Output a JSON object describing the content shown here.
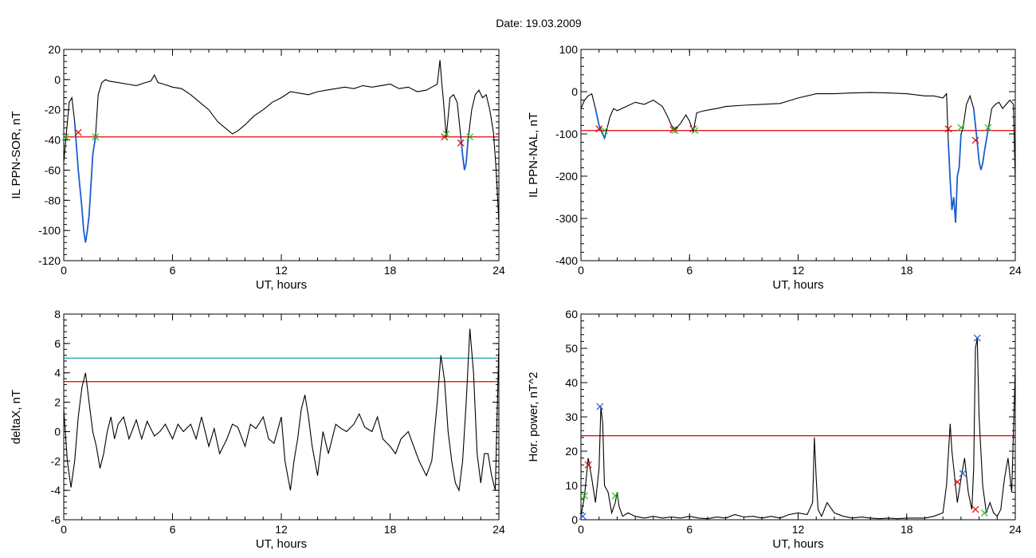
{
  "figure": {
    "date_title": "Date:  19.03.2009"
  },
  "colors": {
    "trace": "#000000",
    "threshold": "#e00000",
    "threshold2": "#1fa0a0",
    "highlight": "#1a5fd0",
    "marker_red": "#e00000",
    "marker_green": "#22bb22",
    "marker_blue": "#1a5fd0"
  },
  "chart_data": [
    {
      "id": "ppn_sor",
      "type": "line",
      "ylabel": "IL PPN-SOR, nT",
      "xlabel": "UT, hours",
      "xlim": [
        0,
        24
      ],
      "ylim": [
        -120,
        20
      ],
      "xticks": [
        0,
        6,
        12,
        18,
        24
      ],
      "yticks": [
        -120,
        -100,
        -80,
        -60,
        -40,
        -20,
        0,
        20
      ],
      "threshold": -38,
      "series": [
        {
          "x": [
            0,
            0.15,
            0.3,
            0.45,
            0.6,
            0.8,
            1.0,
            1.1,
            1.2,
            1.3,
            1.4,
            1.5,
            1.6,
            1.75,
            1.9,
            2.1,
            2.3,
            2.5,
            3,
            3.5,
            4,
            4.5,
            4.8,
            5.0,
            5.2,
            5.5,
            6,
            6.5,
            7,
            7.5,
            8,
            8.5,
            9,
            9.3,
            9.6,
            10,
            10.5,
            11,
            11.5,
            12,
            12.5,
            13,
            13.5,
            14,
            14.5,
            15,
            15.5,
            16,
            16.5,
            17,
            17.5,
            18,
            18.5,
            19,
            19.5,
            20,
            20.3,
            20.6,
            20.75,
            20.85,
            20.95,
            21.1,
            21.3,
            21.5,
            21.7,
            21.9,
            22.0,
            22.1,
            22.2,
            22.3,
            22.5,
            22.7,
            22.9,
            23.1,
            23.3,
            23.5,
            23.7,
            23.85,
            24
          ],
          "y": [
            -55,
            -35,
            -15,
            -12,
            -28,
            -60,
            -85,
            -100,
            -108,
            -100,
            -90,
            -70,
            -50,
            -38,
            -10,
            -2,
            0,
            -1,
            -2,
            -3,
            -4,
            -2,
            -1,
            3,
            -2,
            -3,
            -5,
            -6,
            -10,
            -15,
            -20,
            -28,
            -33,
            -36,
            -34,
            -30,
            -24,
            -20,
            -15,
            -12,
            -8,
            -9,
            -10,
            -8,
            -7,
            -6,
            -5,
            -6,
            -4,
            -5,
            -4,
            -3,
            -6,
            -5,
            -8,
            -7,
            -5,
            -3,
            13,
            -2,
            -15,
            -38,
            -12,
            -10,
            -15,
            -38,
            -50,
            -60,
            -55,
            -40,
            -20,
            -10,
            -7,
            -12,
            -10,
            -20,
            -35,
            -60,
            -95
          ]
        }
      ],
      "highlight_ranges": [
        [
          0.55,
          1.8
        ],
        [
          21.8,
          22.4
        ]
      ],
      "markers": [
        {
          "x": 0.8,
          "y": -35,
          "color": "red"
        },
        {
          "x": 0.1,
          "y": -38,
          "color": "green"
        },
        {
          "x": 1.75,
          "y": -38,
          "color": "green"
        },
        {
          "x": 21.0,
          "y": -38,
          "color": "red"
        },
        {
          "x": 21.1,
          "y": -36,
          "color": "green"
        },
        {
          "x": 21.9,
          "y": -42,
          "color": "red"
        },
        {
          "x": 22.4,
          "y": -38,
          "color": "green"
        }
      ]
    },
    {
      "id": "ppn_nal",
      "type": "line",
      "ylabel": "IL PPN-NAL, nT",
      "xlabel": "UT, hours",
      "xlim": [
        0,
        24
      ],
      "ylim": [
        -400,
        100
      ],
      "xticks": [
        0,
        6,
        12,
        18,
        24
      ],
      "yticks": [
        -400,
        -300,
        -200,
        -100,
        0,
        100
      ],
      "threshold": -92,
      "series": [
        {
          "x": [
            0,
            0.2,
            0.4,
            0.6,
            0.8,
            1.0,
            1.2,
            1.3,
            1.4,
            1.6,
            1.8,
            2.0,
            2.5,
            3,
            3.5,
            4,
            4.5,
            4.8,
            5.0,
            5.2,
            5.5,
            5.8,
            6.0,
            6.2,
            6.4,
            6.8,
            7.5,
            8,
            9,
            10,
            11,
            12,
            13,
            14,
            15,
            16,
            17,
            18,
            19,
            19.5,
            20,
            20.2,
            20.3,
            20.4,
            20.5,
            20.6,
            20.7,
            20.8,
            20.9,
            21.0,
            21.1,
            21.3,
            21.5,
            21.7,
            21.9,
            22.0,
            22.1,
            22.2,
            22.3,
            22.5,
            22.7,
            22.9,
            23.1,
            23.3,
            23.5,
            23.7,
            23.9,
            24
          ],
          "y": [
            -40,
            -20,
            -10,
            -5,
            -40,
            -80,
            -100,
            -110,
            -95,
            -60,
            -40,
            -45,
            -35,
            -25,
            -30,
            -20,
            -35,
            -60,
            -80,
            -90,
            -75,
            -55,
            -70,
            -95,
            -50,
            -45,
            -40,
            -35,
            -32,
            -30,
            -28,
            -15,
            -5,
            -5,
            -3,
            -2,
            -3,
            -5,
            -10,
            -10,
            -15,
            -5,
            -120,
            -210,
            -280,
            -250,
            -310,
            -200,
            -180,
            -100,
            -90,
            -30,
            -10,
            -40,
            -120,
            -165,
            -185,
            -170,
            -140,
            -90,
            -40,
            -30,
            -25,
            -40,
            -30,
            -20,
            -30,
            -210
          ]
        }
      ],
      "highlight_ranges": [
        [
          0.8,
          1.5
        ],
        [
          20.25,
          21.0
        ],
        [
          21.7,
          22.5
        ]
      ],
      "markers": [
        {
          "x": 1.0,
          "y": -88,
          "color": "red"
        },
        {
          "x": 1.3,
          "y": -92,
          "color": "green"
        },
        {
          "x": 5.1,
          "y": -90,
          "color": "red"
        },
        {
          "x": 5.2,
          "y": -92,
          "color": "green"
        },
        {
          "x": 6.2,
          "y": -88,
          "color": "red"
        },
        {
          "x": 6.3,
          "y": -92,
          "color": "green"
        },
        {
          "x": 20.3,
          "y": -88,
          "color": "red"
        },
        {
          "x": 21.0,
          "y": -85,
          "color": "green"
        },
        {
          "x": 21.8,
          "y": -115,
          "color": "red"
        },
        {
          "x": 22.5,
          "y": -85,
          "color": "green"
        }
      ]
    },
    {
      "id": "deltax",
      "type": "line",
      "ylabel": "deltaX, nT",
      "xlabel": "UT, hours",
      "xlim": [
        0,
        24
      ],
      "ylim": [
        -6,
        8
      ],
      "xticks": [
        0,
        6,
        12,
        18,
        24
      ],
      "yticks": [
        -6,
        -4,
        -2,
        0,
        2,
        4,
        6,
        8
      ],
      "threshold": 3.4,
      "threshold2": 5.0,
      "series": [
        {
          "x": [
            0,
            0.2,
            0.4,
            0.6,
            0.8,
            1.0,
            1.2,
            1.4,
            1.6,
            1.8,
            2.0,
            2.2,
            2.4,
            2.6,
            2.8,
            3,
            3.3,
            3.6,
            4,
            4.3,
            4.6,
            5,
            5.3,
            5.6,
            6,
            6.3,
            6.6,
            7,
            7.3,
            7.6,
            8,
            8.3,
            8.6,
            9,
            9.3,
            9.6,
            10,
            10.3,
            10.6,
            11,
            11.3,
            11.6,
            12,
            12.2,
            12.5,
            12.7,
            12.9,
            13.1,
            13.3,
            13.5,
            13.7,
            14,
            14.3,
            14.6,
            15,
            15.3,
            15.6,
            16,
            16.3,
            16.6,
            17,
            17.3,
            17.6,
            18,
            18.3,
            18.6,
            19,
            19.3,
            19.6,
            20,
            20.3,
            20.6,
            20.8,
            21.0,
            21.2,
            21.4,
            21.6,
            21.8,
            22.0,
            22.2,
            22.4,
            22.6,
            22.8,
            23.0,
            23.2,
            23.4,
            23.6,
            23.8,
            24
          ],
          "y": [
            1.5,
            -2,
            -3.8,
            -2,
            1,
            3,
            4,
            2,
            0,
            -1,
            -2.5,
            -1.5,
            0,
            1,
            -0.5,
            0.5,
            1,
            -0.5,
            0.8,
            -0.5,
            0.7,
            -0.3,
            0,
            0.5,
            -0.5,
            0.5,
            0,
            0.5,
            -0.5,
            1,
            -1,
            0.2,
            -1.5,
            -0.5,
            0.5,
            0.3,
            -1,
            0.5,
            0.2,
            1,
            -0.5,
            -0.8,
            1,
            -2,
            -4,
            -2,
            -0.5,
            1.5,
            2.5,
            1,
            -1,
            -3,
            0,
            -1.5,
            0.5,
            0.2,
            0,
            0.5,
            1.2,
            0.3,
            0,
            1,
            -0.5,
            -1,
            -1.5,
            -0.5,
            0,
            -1,
            -2,
            -3,
            -2,
            2,
            5.2,
            3.5,
            0,
            -2,
            -3.5,
            -4,
            -2,
            2,
            7,
            4,
            -1.5,
            -3.5,
            -1.5,
            -1.5,
            -3,
            -4,
            6
          ]
        }
      ]
    },
    {
      "id": "hor_power",
      "type": "line",
      "ylabel": "Hor. power, nT^2",
      "xlabel": "UT, hours",
      "xlim": [
        0,
        24
      ],
      "ylim": [
        0,
        60
      ],
      "xticks": [
        0,
        6,
        12,
        18,
        24
      ],
      "yticks": [
        0,
        10,
        20,
        30,
        40,
        50,
        60
      ],
      "threshold": 24.5,
      "series": [
        {
          "x": [
            0,
            0.2,
            0.4,
            0.6,
            0.8,
            1.0,
            1.1,
            1.2,
            1.3,
            1.5,
            1.7,
            1.9,
            2.0,
            2.1,
            2.3,
            2.6,
            3,
            3.5,
            4,
            4.5,
            5,
            5.5,
            6,
            6.5,
            7,
            7.5,
            8,
            8.5,
            9,
            9.5,
            10,
            10.5,
            11,
            11.5,
            12,
            12.5,
            12.8,
            12.9,
            13.0,
            13.1,
            13.3,
            13.6,
            14,
            14.5,
            15,
            15.5,
            16,
            16.5,
            17,
            17.5,
            18,
            18.5,
            19,
            19.5,
            20,
            20.2,
            20.4,
            20.5,
            20.6,
            20.8,
            21.0,
            21.2,
            21.4,
            21.6,
            21.7,
            21.8,
            21.9,
            22.0,
            22.2,
            22.4,
            22.6,
            22.8,
            23.0,
            23.2,
            23.4,
            23.6,
            23.8,
            24
          ],
          "y": [
            1,
            7,
            18,
            12,
            5,
            15,
            33,
            28,
            10,
            8,
            2,
            5,
            8,
            4,
            1,
            2,
            1,
            0.5,
            1,
            0.5,
            0.8,
            0.5,
            1,
            0.5,
            0.3,
            0.8,
            0.5,
            1.5,
            0.8,
            1,
            0.5,
            1,
            0.5,
            1.5,
            2,
            1.5,
            5,
            24,
            12,
            3,
            1,
            5,
            2,
            1,
            0.5,
            0.8,
            0.5,
            0.3,
            0.5,
            0.3,
            0.5,
            0.5,
            0.5,
            1,
            2,
            10,
            28,
            20,
            15,
            5,
            12,
            18,
            8,
            3,
            15,
            50,
            53,
            30,
            10,
            2,
            5,
            2,
            1,
            3,
            12,
            18,
            8,
            44
          ]
        }
      ],
      "markers": [
        {
          "x": 0.4,
          "y": 16,
          "color": "red"
        },
        {
          "x": 0.2,
          "y": 7,
          "color": "green"
        },
        {
          "x": 0.1,
          "y": 1,
          "color": "blue"
        },
        {
          "x": 1.05,
          "y": 33,
          "color": "blue"
        },
        {
          "x": 1.9,
          "y": 7,
          "color": "green"
        },
        {
          "x": 20.8,
          "y": 11,
          "color": "red"
        },
        {
          "x": 21.1,
          "y": 13.5,
          "color": "blue"
        },
        {
          "x": 21.8,
          "y": 3,
          "color": "red"
        },
        {
          "x": 21.9,
          "y": 53,
          "color": "blue"
        },
        {
          "x": 22.3,
          "y": 2,
          "color": "green"
        }
      ]
    }
  ]
}
